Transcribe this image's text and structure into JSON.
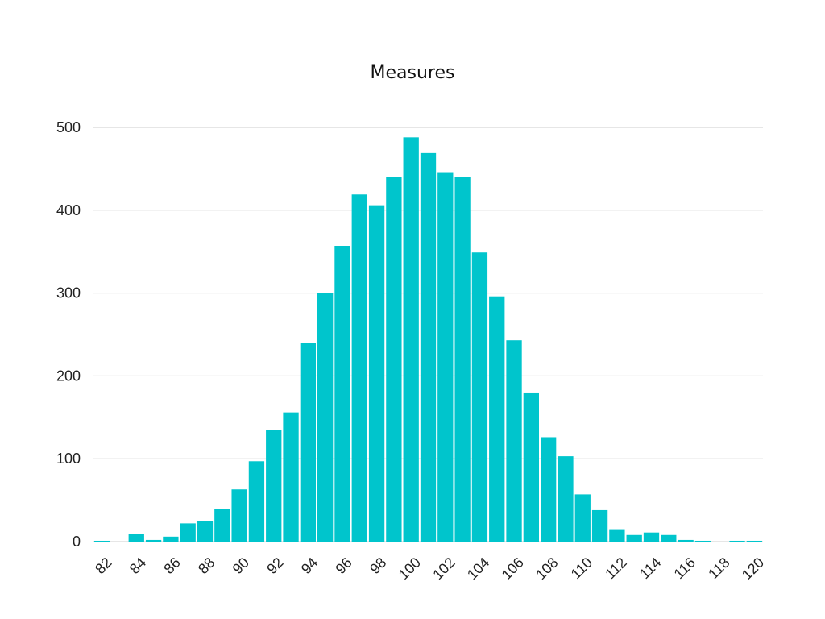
{
  "chart_data": {
    "type": "bar",
    "title": "Measures",
    "xlabel": "",
    "ylabel": "",
    "ylim": [
      0,
      500
    ],
    "y_ticks": [
      0,
      100,
      200,
      300,
      400,
      500
    ],
    "x_tick_labels": [
      "82",
      "84",
      "86",
      "88",
      "90",
      "92",
      "94",
      "96",
      "98",
      "100",
      "102",
      "104",
      "106",
      "108",
      "110",
      "112",
      "114",
      "116",
      "118",
      "120"
    ],
    "bar_color": "#00c5cc",
    "grid": true,
    "categories": [
      82,
      83,
      84,
      85,
      86,
      87,
      88,
      89,
      90,
      91,
      92,
      93,
      94,
      95,
      96,
      97,
      98,
      99,
      100,
      101,
      102,
      103,
      104,
      105,
      106,
      107,
      108,
      109,
      110,
      111,
      112,
      113,
      114,
      115,
      116,
      117,
      118,
      119,
      120
    ],
    "values": [
      1,
      0,
      9,
      2,
      6,
      22,
      25,
      39,
      63,
      97,
      135,
      156,
      240,
      300,
      357,
      419,
      406,
      440,
      488,
      469,
      445,
      440,
      349,
      296,
      243,
      180,
      126,
      103,
      57,
      38,
      15,
      8,
      11,
      8,
      2,
      1,
      0,
      1,
      1
    ]
  }
}
